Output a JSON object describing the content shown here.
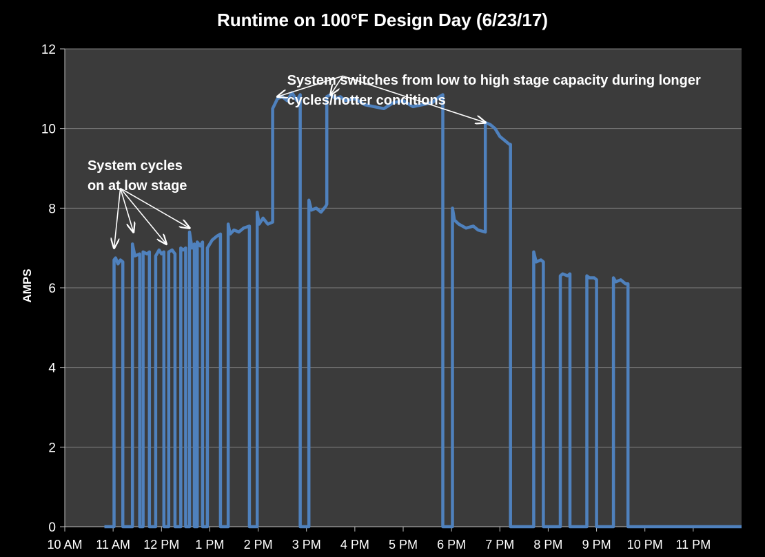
{
  "chart_data": {
    "type": "line",
    "title": "Runtime on 100°F Design Day (6/23/17)",
    "xlabel": "",
    "ylabel": "AMPS",
    "ylim": [
      0,
      12
    ],
    "yticks": [
      0,
      2,
      4,
      6,
      8,
      10,
      12
    ],
    "xlim": [
      10,
      24
    ],
    "x_ticks": [
      {
        "v": 10,
        "label": "10 AM"
      },
      {
        "v": 11,
        "label": "11 AM"
      },
      {
        "v": 12,
        "label": "12 PM"
      },
      {
        "v": 13,
        "label": "1 PM"
      },
      {
        "v": 14,
        "label": "2 PM"
      },
      {
        "v": 15,
        "label": "3 PM"
      },
      {
        "v": 16,
        "label": "4 PM"
      },
      {
        "v": 17,
        "label": "5 PM"
      },
      {
        "v": 18,
        "label": "6 PM"
      },
      {
        "v": 19,
        "label": "7 PM"
      },
      {
        "v": 20,
        "label": "8 PM"
      },
      {
        "v": 21,
        "label": "9 PM"
      },
      {
        "v": 22,
        "label": "10 PM"
      },
      {
        "v": 23,
        "label": "11 PM"
      }
    ],
    "grid": true,
    "line_color": "#4f81bd",
    "series": [
      {
        "name": "",
        "points": [
          [
            10.82,
            0
          ],
          [
            11.02,
            0
          ],
          [
            11.02,
            6.7
          ],
          [
            11.05,
            6.75
          ],
          [
            11.1,
            6.6
          ],
          [
            11.15,
            6.7
          ],
          [
            11.2,
            6.65
          ],
          [
            11.2,
            0
          ],
          [
            11.4,
            0
          ],
          [
            11.4,
            7.1
          ],
          [
            11.45,
            6.8
          ],
          [
            11.55,
            6.85
          ],
          [
            11.55,
            0
          ],
          [
            11.62,
            0
          ],
          [
            11.62,
            6.9
          ],
          [
            11.7,
            6.85
          ],
          [
            11.75,
            6.9
          ],
          [
            11.75,
            0
          ],
          [
            11.88,
            0
          ],
          [
            11.88,
            6.8
          ],
          [
            11.95,
            6.95
          ],
          [
            12.0,
            6.85
          ],
          [
            12.05,
            6.9
          ],
          [
            12.05,
            0
          ],
          [
            12.15,
            0
          ],
          [
            12.15,
            6.9
          ],
          [
            12.22,
            6.95
          ],
          [
            12.28,
            6.85
          ],
          [
            12.28,
            0
          ],
          [
            12.4,
            0
          ],
          [
            12.4,
            7.0
          ],
          [
            12.45,
            6.95
          ],
          [
            12.5,
            7.0
          ],
          [
            12.5,
            0
          ],
          [
            12.58,
            0
          ],
          [
            12.58,
            7.4
          ],
          [
            12.63,
            7.0
          ],
          [
            12.68,
            7.1
          ],
          [
            12.68,
            0
          ],
          [
            12.74,
            0
          ],
          [
            12.74,
            7.15
          ],
          [
            12.8,
            7.05
          ],
          [
            12.85,
            7.15
          ],
          [
            12.85,
            0
          ],
          [
            12.95,
            0
          ],
          [
            12.95,
            7.0
          ],
          [
            13.05,
            7.2
          ],
          [
            13.15,
            7.3
          ],
          [
            13.22,
            7.35
          ],
          [
            13.22,
            0
          ],
          [
            13.38,
            0
          ],
          [
            13.38,
            7.6
          ],
          [
            13.42,
            7.35
          ],
          [
            13.5,
            7.45
          ],
          [
            13.6,
            7.4
          ],
          [
            13.7,
            7.5
          ],
          [
            13.82,
            7.55
          ],
          [
            13.82,
            0
          ],
          [
            13.98,
            0
          ],
          [
            13.98,
            7.9
          ],
          [
            14.02,
            7.6
          ],
          [
            14.1,
            7.75
          ],
          [
            14.2,
            7.6
          ],
          [
            14.3,
            7.65
          ],
          [
            14.3,
            10.5
          ],
          [
            14.4,
            10.75
          ],
          [
            14.5,
            10.8
          ],
          [
            14.6,
            10.7
          ],
          [
            14.7,
            10.9
          ],
          [
            14.8,
            10.7
          ],
          [
            14.87,
            10.85
          ],
          [
            14.87,
            0
          ],
          [
            15.05,
            0
          ],
          [
            15.05,
            8.2
          ],
          [
            15.1,
            7.95
          ],
          [
            15.2,
            8.0
          ],
          [
            15.3,
            7.9
          ],
          [
            15.4,
            8.05
          ],
          [
            15.42,
            8.1
          ],
          [
            15.42,
            10.8
          ],
          [
            15.5,
            10.85
          ],
          [
            15.6,
            10.75
          ],
          [
            15.7,
            10.8
          ],
          [
            15.8,
            10.7
          ],
          [
            16.0,
            10.75
          ],
          [
            16.2,
            10.6
          ],
          [
            16.4,
            10.55
          ],
          [
            16.6,
            10.5
          ],
          [
            16.8,
            10.65
          ],
          [
            17.0,
            10.7
          ],
          [
            17.2,
            10.55
          ],
          [
            17.4,
            10.6
          ],
          [
            17.6,
            10.65
          ],
          [
            17.75,
            10.8
          ],
          [
            17.82,
            10.85
          ],
          [
            17.82,
            0
          ],
          [
            18.02,
            0
          ],
          [
            18.02,
            8.0
          ],
          [
            18.06,
            7.7
          ],
          [
            18.15,
            7.6
          ],
          [
            18.3,
            7.5
          ],
          [
            18.45,
            7.55
          ],
          [
            18.55,
            7.45
          ],
          [
            18.7,
            7.4
          ],
          [
            18.7,
            10.15
          ],
          [
            18.8,
            10.1
          ],
          [
            18.9,
            10.0
          ],
          [
            19.0,
            9.8
          ],
          [
            19.1,
            9.7
          ],
          [
            19.2,
            9.6
          ],
          [
            19.22,
            9.6
          ],
          [
            19.22,
            0
          ],
          [
            19.7,
            0
          ],
          [
            19.7,
            6.9
          ],
          [
            19.75,
            6.65
          ],
          [
            19.85,
            6.7
          ],
          [
            19.9,
            6.65
          ],
          [
            19.9,
            0
          ],
          [
            20.25,
            0
          ],
          [
            20.25,
            6.3
          ],
          [
            20.3,
            6.35
          ],
          [
            20.4,
            6.3
          ],
          [
            20.45,
            6.35
          ],
          [
            20.45,
            0
          ],
          [
            20.8,
            0
          ],
          [
            20.8,
            6.3
          ],
          [
            20.85,
            6.25
          ],
          [
            20.95,
            6.25
          ],
          [
            21.0,
            6.2
          ],
          [
            21.0,
            0
          ],
          [
            21.35,
            0
          ],
          [
            21.35,
            6.25
          ],
          [
            21.4,
            6.15
          ],
          [
            21.5,
            6.2
          ],
          [
            21.6,
            6.1
          ],
          [
            21.65,
            6.1
          ],
          [
            21.65,
            0
          ],
          [
            24.0,
            0
          ]
        ]
      }
    ],
    "annotations": [
      {
        "lines": [
          "System switches from low to high stage capacity during longer cycles/hotter conditions"
        ],
        "anchor": [
          14.6,
          11.45
        ],
        "arrows": [
          {
            "from": [
              15.75,
              11.32
            ],
            "to": [
              14.4,
              10.8
            ]
          },
          {
            "from": [
              15.75,
              11.32
            ],
            "to": [
              15.5,
              10.85
            ]
          },
          {
            "from": [
              15.75,
              11.32
            ],
            "to": [
              18.7,
              10.15
            ]
          }
        ]
      },
      {
        "lines": [
          "System cycles",
          "on at low stage"
        ],
        "anchor": [
          10.47,
          9.3
        ],
        "arrows": [
          {
            "from": [
              11.15,
              8.5
            ],
            "to": [
              11.02,
              7.0
            ]
          },
          {
            "from": [
              11.15,
              8.5
            ],
            "to": [
              11.42,
              7.4
            ]
          },
          {
            "from": [
              11.15,
              8.5
            ],
            "to": [
              12.1,
              7.1
            ]
          },
          {
            "from": [
              11.15,
              8.5
            ],
            "to": [
              12.58,
              7.5
            ]
          }
        ]
      }
    ]
  }
}
